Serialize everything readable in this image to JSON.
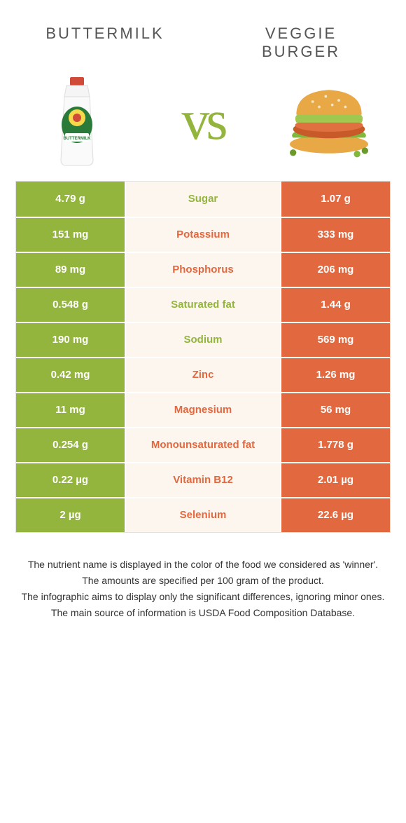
{
  "colors": {
    "green": "#94b53d",
    "orange": "#e2683f",
    "mid_bg": "#fdf6ef",
    "text_dark": "#3a3a3a",
    "text_white": "#ffffff"
  },
  "food_left": {
    "name": "Buttermilk",
    "color": "#94b53d"
  },
  "food_right": {
    "name": "Veggie burger",
    "color": "#e2683f"
  },
  "vs_label": "vs",
  "rows": [
    {
      "nutrient": "Sugar",
      "left": "4.79 g",
      "right": "1.07 g",
      "winner": "left"
    },
    {
      "nutrient": "Potassium",
      "left": "151 mg",
      "right": "333 mg",
      "winner": "right"
    },
    {
      "nutrient": "Phosphorus",
      "left": "89 mg",
      "right": "206 mg",
      "winner": "right"
    },
    {
      "nutrient": "Saturated fat",
      "left": "0.548 g",
      "right": "1.44 g",
      "winner": "left"
    },
    {
      "nutrient": "Sodium",
      "left": "190 mg",
      "right": "569 mg",
      "winner": "left"
    },
    {
      "nutrient": "Zinc",
      "left": "0.42 mg",
      "right": "1.26 mg",
      "winner": "right"
    },
    {
      "nutrient": "Magnesium",
      "left": "11 mg",
      "right": "56 mg",
      "winner": "right"
    },
    {
      "nutrient": "Monounsaturated fat",
      "left": "0.254 g",
      "right": "1.778 g",
      "winner": "right"
    },
    {
      "nutrient": "Vitamin B12",
      "left": "0.22 µg",
      "right": "2.01 µg",
      "winner": "right"
    },
    {
      "nutrient": "Selenium",
      "left": "2 µg",
      "right": "22.6 µg",
      "winner": "right"
    }
  ],
  "footer": {
    "line1": "The nutrient name is displayed in the color of the food we considered as 'winner'.",
    "line2": "The amounts are specified per 100 gram of the product.",
    "line3": "The infographic aims to display only the significant differences, ignoring minor ones.",
    "line4": "The main source of information is USDA Food Composition Database."
  }
}
